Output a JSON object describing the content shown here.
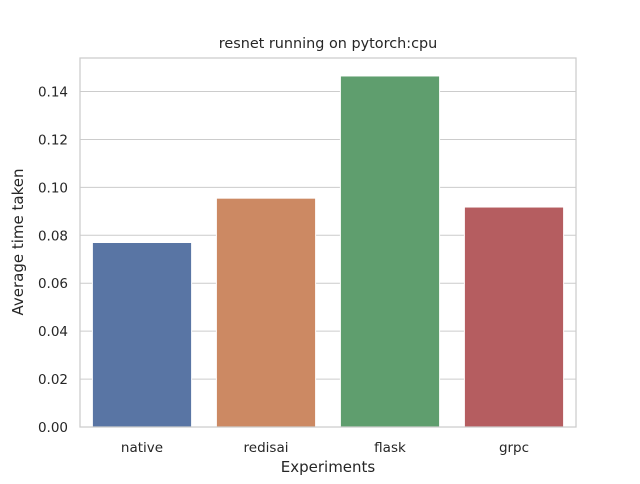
{
  "chart_data": {
    "type": "bar",
    "title": "resnet running on pytorch:cpu",
    "xlabel": "Experiments",
    "ylabel": "Average time taken",
    "categories": [
      "native",
      "redisai",
      "flask",
      "grpc"
    ],
    "values": [
      0.077,
      0.0955,
      0.1465,
      0.0918
    ],
    "colors": [
      "#5975a4",
      "#cc8963",
      "#5f9e6e",
      "#b55d60"
    ],
    "ylim": [
      0,
      0.154
    ],
    "yticks": [
      0.0,
      0.02,
      0.04,
      0.06,
      0.08,
      0.1,
      0.12,
      0.14
    ],
    "ytick_labels": [
      "0.00",
      "0.02",
      "0.04",
      "0.06",
      "0.08",
      "0.10",
      "0.12",
      "0.14"
    ],
    "grid": "horizontal",
    "legend": "none",
    "style": {
      "background": "#ffffff",
      "grid_color": "#cccccc",
      "axis_edge_color": "#cccccc",
      "text_color": "#262626"
    }
  }
}
